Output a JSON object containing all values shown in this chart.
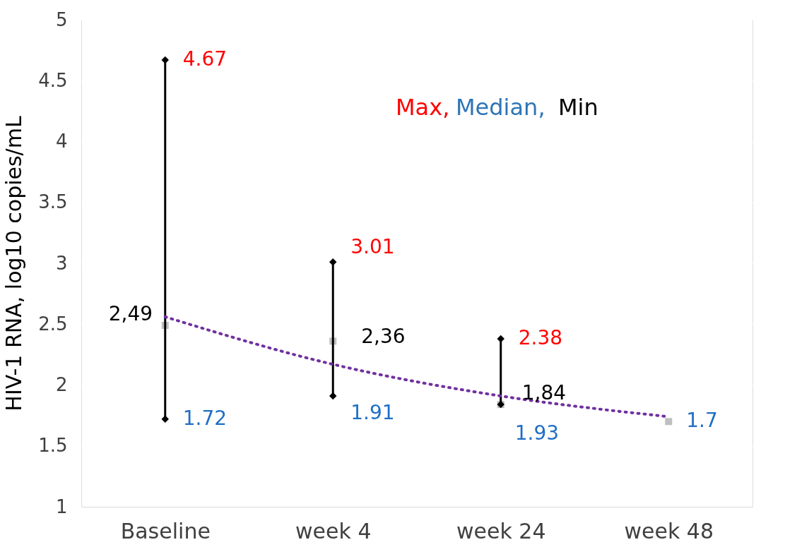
{
  "chart_data": {
    "type": "scatter",
    "categories": [
      "Baseline",
      "week 4",
      "week 24",
      "week 48"
    ],
    "ylabel": "HIV-1 RNA, log10 copies/mL",
    "ylim": [
      1,
      5
    ],
    "yticks": [
      1,
      1.5,
      2,
      2.5,
      3,
      3.5,
      4,
      4.5,
      5
    ],
    "grid": "y",
    "series": [
      {
        "marker": "square",
        "color": "#bfbfbf",
        "values": [
          2.49,
          2.36,
          1.84,
          1.7
        ],
        "errors": [
          [
            1.72,
            4.67
          ],
          [
            1.91,
            3.01
          ],
          [
            1.84,
            2.38
          ],
          null
        ]
      },
      {
        "type": "line",
        "line_style": "dotted",
        "color": "#7030a0",
        "values": [
          2.56,
          2.17,
          1.91,
          1.74
        ]
      }
    ],
    "annotations": [
      {
        "text": "4.67",
        "x": "Baseline",
        "y": 4.67
      },
      {
        "text": "2,49",
        "x": "Baseline",
        "y": 2.49
      },
      {
        "text": "1.72",
        "x": "Baseline",
        "y": 1.72
      },
      {
        "text": "3.01",
        "x": "week 4",
        "y": 3.01
      },
      {
        "text": "2,36",
        "x": "week 4",
        "y": 2.36
      },
      {
        "text": "1.91",
        "x": "week 4",
        "y": 1.91
      },
      {
        "text": "2.38",
        "x": "week 24",
        "y": 2.38
      },
      {
        "text": "1,84",
        "x": "week 24",
        "y": 1.84
      },
      {
        "text": "1.93",
        "x": "week 24",
        "y": 1.84
      },
      {
        "text": "1.7",
        "x": "week 48",
        "y": 1.7
      },
      "Max,",
      "Median,",
      "Min"
    ]
  }
}
